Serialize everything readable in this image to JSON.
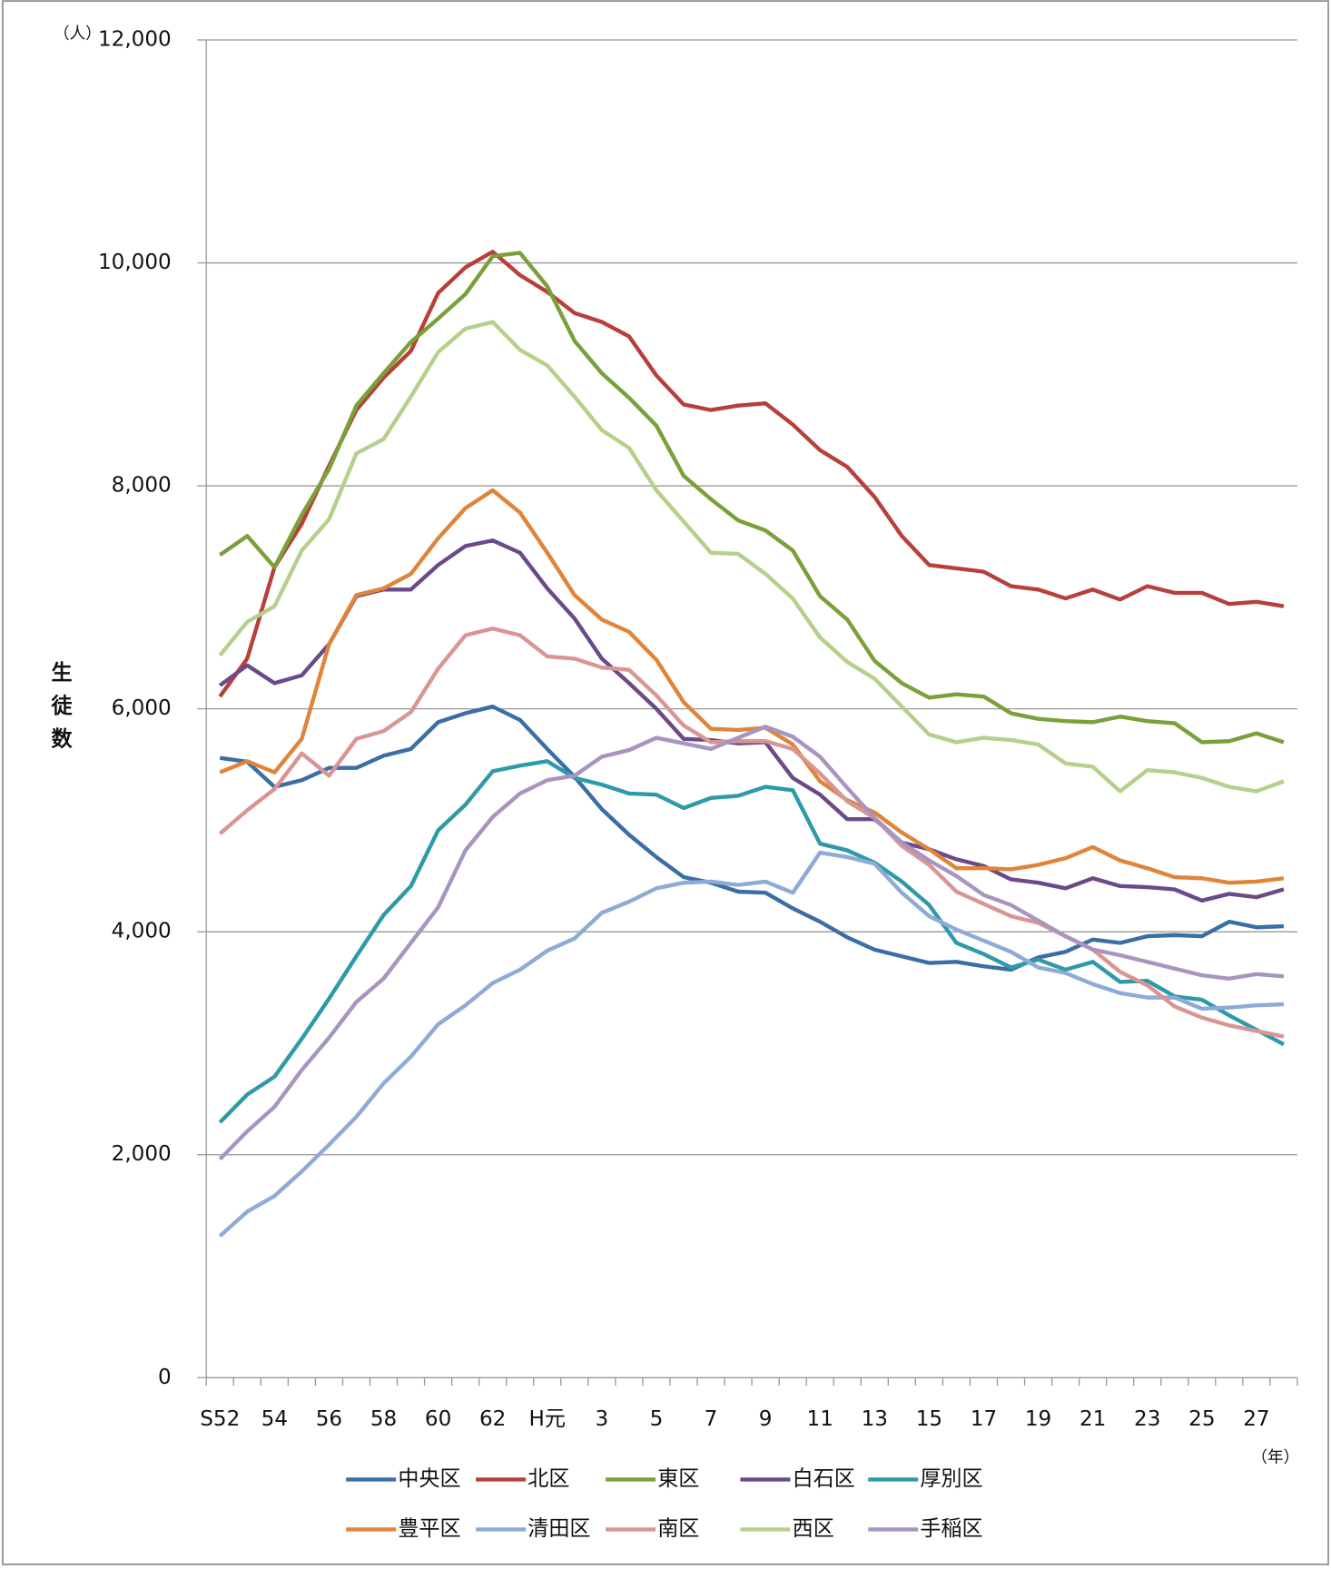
{
  "chart_data": {
    "type": "line",
    "y_unit": "（人）",
    "ylabel": "生徒数",
    "x_unit": "（年）",
    "categories": [
      "S52",
      null,
      "54",
      null,
      "56",
      null,
      "58",
      null,
      "60",
      null,
      "62",
      null,
      "H元",
      null,
      "3",
      null,
      "5",
      null,
      "7",
      null,
      "9",
      null,
      "11",
      null,
      "13",
      null,
      "15",
      null,
      "17",
      null,
      "19",
      null,
      "21",
      null,
      "23",
      null,
      "25",
      null,
      "27",
      null
    ],
    "ylim": [
      0,
      12000
    ],
    "yticks": [
      0,
      {
        "value": 2000,
        "label": "2,000"
      },
      {
        "value": 4000,
        "label": "4,000"
      },
      {
        "value": 6000,
        "label": "6,000"
      },
      {
        "value": 8000,
        "label": "8,000"
      },
      {
        "value": 10000,
        "label": "10,000"
      },
      {
        "value": 12000,
        "label": "12,000"
      }
    ],
    "grid": true,
    "series": [
      {
        "name": "中央区",
        "color": "#3a6ea5",
        "values": [
          5560,
          5525,
          5300,
          5360,
          5470,
          5470,
          5580,
          5640,
          5880,
          5960,
          6020,
          5900,
          5640,
          5390,
          5100,
          4870,
          4670,
          4490,
          4440,
          4360,
          4350,
          4210,
          4090,
          3950,
          3840,
          3780,
          3720,
          3730,
          3690,
          3660,
          3770,
          3820,
          3930,
          3900,
          3960,
          3970,
          3960,
          4090,
          4040,
          4050
        ]
      },
      {
        "name": "北区",
        "color": "#b8403a",
        "values": [
          6110,
          6450,
          7270,
          7660,
          8180,
          8680,
          8970,
          9210,
          9730,
          9960,
          10100,
          9890,
          9740,
          9550,
          9470,
          9340,
          8990,
          8730,
          8680,
          8720,
          8740,
          8550,
          8320,
          8170,
          7900,
          7550,
          7290,
          7260,
          7230,
          7100,
          7070,
          6990,
          7070,
          6980,
          7100,
          7040,
          7040,
          6940,
          6960,
          6920
        ]
      },
      {
        "name": "東区",
        "color": "#7aa03a",
        "values": [
          7380,
          7550,
          7270,
          7740,
          8150,
          8720,
          9010,
          9290,
          9500,
          9720,
          10060,
          10090,
          9790,
          9300,
          9010,
          8790,
          8540,
          8090,
          7880,
          7690,
          7600,
          7420,
          7010,
          6800,
          6430,
          6230,
          6100,
          6130,
          6110,
          5960,
          5910,
          5890,
          5880,
          5930,
          5890,
          5870,
          5700,
          5710,
          5780,
          5700
        ]
      },
      {
        "name": "白石区",
        "color": "#6b4a8a",
        "values": [
          6210,
          6390,
          6230,
          6300,
          6580,
          7010,
          7070,
          7070,
          7290,
          7460,
          7510,
          7400,
          7080,
          6810,
          6450,
          6230,
          6000,
          5730,
          5720,
          5690,
          5700,
          5380,
          5230,
          5010,
          5010,
          4800,
          4740,
          4650,
          4590,
          4470,
          4440,
          4390,
          4480,
          4410,
          4400,
          4380,
          4280,
          4340,
          4310,
          4380
        ]
      },
      {
        "name": "厚別区",
        "color": "#2e9aa8",
        "values": [
          2290,
          2540,
          2700,
          3040,
          3400,
          3780,
          4150,
          4410,
          4910,
          5140,
          5440,
          5490,
          5530,
          5380,
          5320,
          5240,
          5230,
          5110,
          5200,
          5220,
          5300,
          5270,
          4790,
          4730,
          4620,
          4450,
          4240,
          3900,
          3800,
          3680,
          3750,
          3660,
          3730,
          3550,
          3560,
          3420,
          3390,
          3250,
          3120,
          2990
        ]
      },
      {
        "name": "豊平区",
        "color": "#e0843a",
        "values": [
          5430,
          5530,
          5430,
          5730,
          6580,
          7020,
          7080,
          7210,
          7530,
          7800,
          7960,
          7760,
          7400,
          7020,
          6800,
          6690,
          6440,
          6060,
          5820,
          5810,
          5830,
          5680,
          5350,
          5180,
          5070,
          4890,
          4740,
          4570,
          4570,
          4560,
          4600,
          4660,
          4760,
          4640,
          4570,
          4490,
          4480,
          4440,
          4450,
          4480
        ]
      },
      {
        "name": "清田区",
        "color": "#8eaad6",
        "values": [
          1270,
          1490,
          1630,
          1850,
          2090,
          2340,
          2640,
          2880,
          3170,
          3340,
          3540,
          3660,
          3830,
          3940,
          4170,
          4270,
          4390,
          4440,
          4450,
          4420,
          4450,
          4350,
          4710,
          4670,
          4610,
          4350,
          4140,
          4020,
          3920,
          3820,
          3680,
          3630,
          3530,
          3450,
          3410,
          3410,
          3310,
          3320,
          3340,
          3350
        ]
      },
      {
        "name": "南区",
        "color": "#d99593",
        "values": [
          4880,
          5090,
          5280,
          5600,
          5400,
          5730,
          5800,
          5970,
          6360,
          6660,
          6720,
          6660,
          6470,
          6450,
          6370,
          6350,
          6120,
          5850,
          5700,
          5710,
          5710,
          5640,
          5420,
          5170,
          5020,
          4770,
          4600,
          4360,
          4250,
          4140,
          4080,
          3960,
          3840,
          3640,
          3520,
          3330,
          3230,
          3160,
          3110,
          3060
        ]
      },
      {
        "name": "西区",
        "color": "#b5d08a",
        "values": [
          6480,
          6780,
          6920,
          7420,
          7700,
          8290,
          8420,
          8800,
          9200,
          9410,
          9470,
          9220,
          9080,
          8800,
          8500,
          8340,
          7960,
          7680,
          7400,
          7390,
          7210,
          6990,
          6640,
          6420,
          6270,
          6020,
          5770,
          5700,
          5740,
          5720,
          5680,
          5510,
          5480,
          5260,
          5450,
          5430,
          5380,
          5300,
          5260,
          5350
        ]
      },
      {
        "name": "手稲区",
        "color": "#a795c0",
        "values": [
          1960,
          2210,
          2430,
          2760,
          3050,
          3370,
          3580,
          3900,
          4220,
          4730,
          5030,
          5240,
          5360,
          5400,
          5570,
          5630,
          5740,
          5690,
          5640,
          5740,
          5840,
          5750,
          5570,
          5290,
          5020,
          4800,
          4640,
          4500,
          4330,
          4240,
          4100,
          3960,
          3840,
          3790,
          3730,
          3670,
          3610,
          3580,
          3620,
          3600
        ]
      }
    ]
  }
}
